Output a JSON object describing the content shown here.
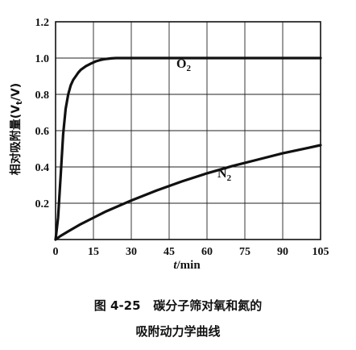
{
  "chart_data": {
    "type": "line",
    "xlabel_italic": "t",
    "xlabel_rest": "/min",
    "ylabel": "相对吸附量(V",
    "ylabel_sub": "t",
    "ylabel_end": "/V)",
    "xlim": [
      0,
      105
    ],
    "ylim": [
      0,
      1.2
    ],
    "xticks": [
      0,
      15,
      30,
      45,
      60,
      75,
      90,
      105
    ],
    "yticks": [
      0,
      0.2,
      0.4,
      0.6,
      0.8,
      1.0,
      1.2
    ],
    "ytick_labels": [
      "0",
      "0.2",
      "0.4",
      "0.6",
      "0.8",
      "1.0",
      "1.2"
    ],
    "xtick_labels": [
      "0",
      "15",
      "30",
      "45",
      "60",
      "75",
      "90",
      "105"
    ],
    "grid": true,
    "series": [
      {
        "name": "O",
        "name_sub": "2",
        "x": [
          0,
          1,
          2,
          3,
          4,
          5,
          6,
          7,
          8,
          9,
          10,
          12,
          14,
          16,
          18,
          20,
          22,
          24,
          26,
          30,
          40,
          60,
          80,
          105
        ],
        "y": [
          0.0,
          0.12,
          0.35,
          0.58,
          0.72,
          0.8,
          0.85,
          0.88,
          0.9,
          0.92,
          0.935,
          0.955,
          0.97,
          0.982,
          0.99,
          0.995,
          0.998,
          1.0,
          1.0,
          1.0,
          1.0,
          1.0,
          1.0,
          1.0
        ]
      },
      {
        "name": "N",
        "name_sub": "2",
        "x": [
          0,
          2,
          5,
          10,
          15,
          20,
          30,
          40,
          50,
          60,
          70,
          80,
          90,
          100,
          105
        ],
        "y": [
          0.0,
          0.02,
          0.045,
          0.085,
          0.12,
          0.155,
          0.215,
          0.27,
          0.32,
          0.365,
          0.405,
          0.44,
          0.475,
          0.505,
          0.52
        ]
      }
    ]
  },
  "caption": {
    "line1": "图 4-25   碳分子筛对氧和氮的",
    "line2": "吸附动力学曲线"
  }
}
